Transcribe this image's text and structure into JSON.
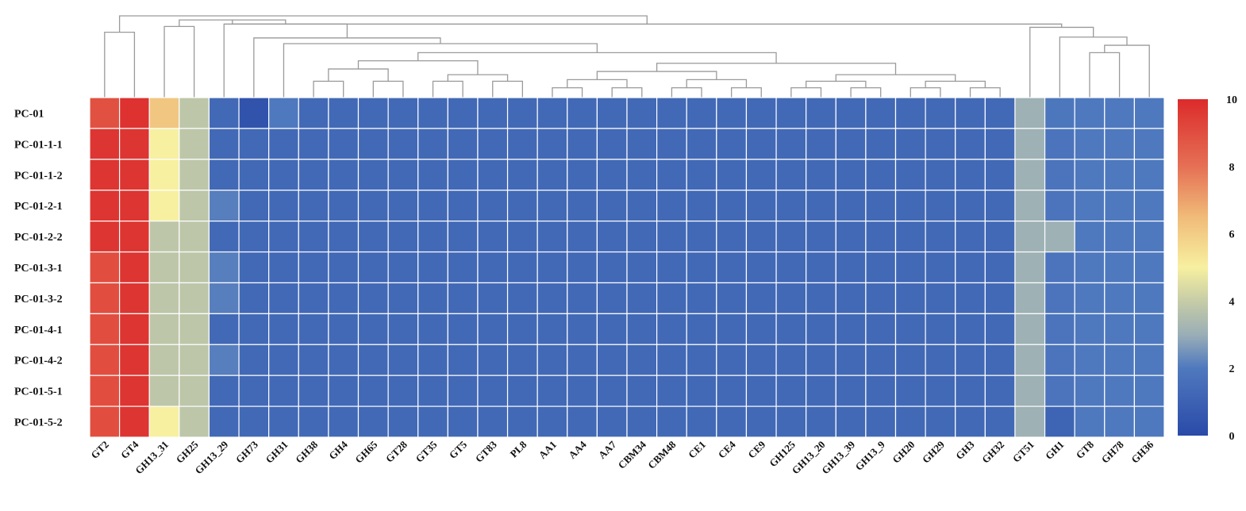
{
  "chart_data": {
    "type": "heatmap",
    "title": "",
    "xlabel": "",
    "ylabel": "",
    "rows": [
      "PC-01",
      "PC-01-1-1",
      "PC-01-1-2",
      "PC-01-2-1",
      "PC-01-2-2",
      "PC-01-3-1",
      "PC-01-3-2",
      "PC-01-4-1",
      "PC-01-4-2",
      "PC-01-5-1",
      "PC-01-5-2"
    ],
    "columns": [
      "GT2",
      "GT4",
      "GH13_31",
      "GH25",
      "GH13_29",
      "GH73",
      "GH31",
      "GH38",
      "GH4",
      "GH65",
      "GT28",
      "GT35",
      "GT5",
      "GT83",
      "PL8",
      "AA1",
      "AA4",
      "AA7",
      "CBM34",
      "CBM48",
      "CE1",
      "CE4",
      "CE9",
      "GH125",
      "GH13_20",
      "GH13_39",
      "GH13_9",
      "GH20",
      "GH29",
      "GH3",
      "GH32",
      "GT51",
      "GH1",
      "GT8",
      "GH78",
      "GH36"
    ],
    "values": [
      [
        8.9,
        9.8,
        6.2,
        3.8,
        1.3,
        0.4,
        2.0,
        1.3,
        1.3,
        1.3,
        1.3,
        1.3,
        1.3,
        1.3,
        1.3,
        1.3,
        1.3,
        1.3,
        1.3,
        1.3,
        1.3,
        1.3,
        1.3,
        1.3,
        1.3,
        1.3,
        1.3,
        1.3,
        1.3,
        1.3,
        1.3,
        3.1,
        1.9,
        2.0,
        2.0,
        2.0
      ],
      [
        9.7,
        9.7,
        5.0,
        3.8,
        1.3,
        1.3,
        1.3,
        1.3,
        1.3,
        1.3,
        1.3,
        1.3,
        1.3,
        1.3,
        1.3,
        1.3,
        1.3,
        1.3,
        1.3,
        1.3,
        1.3,
        1.3,
        1.3,
        1.3,
        1.3,
        1.3,
        1.3,
        1.3,
        1.3,
        1.3,
        1.3,
        3.1,
        1.8,
        2.0,
        2.0,
        2.0
      ],
      [
        9.7,
        9.7,
        5.0,
        3.8,
        1.3,
        1.3,
        1.3,
        1.3,
        1.3,
        1.3,
        1.3,
        1.3,
        1.3,
        1.3,
        1.3,
        1.3,
        1.3,
        1.3,
        1.3,
        1.3,
        1.3,
        1.3,
        1.3,
        1.3,
        1.3,
        1.3,
        1.3,
        1.3,
        1.3,
        1.3,
        1.3,
        3.1,
        1.8,
        2.0,
        2.0,
        2.0
      ],
      [
        9.7,
        9.7,
        5.0,
        3.8,
        2.1,
        1.3,
        1.3,
        1.3,
        1.3,
        1.3,
        1.3,
        1.3,
        1.3,
        1.3,
        1.3,
        1.3,
        1.3,
        1.3,
        1.3,
        1.3,
        1.3,
        1.3,
        1.3,
        1.3,
        1.3,
        1.3,
        1.3,
        1.3,
        1.3,
        1.3,
        1.3,
        3.1,
        1.8,
        2.0,
        2.0,
        2.0
      ],
      [
        9.7,
        9.7,
        3.8,
        3.8,
        1.3,
        1.3,
        1.3,
        1.3,
        1.3,
        1.3,
        1.3,
        1.3,
        1.3,
        1.3,
        1.3,
        1.3,
        1.3,
        1.3,
        1.3,
        1.3,
        1.3,
        1.3,
        1.3,
        1.3,
        1.3,
        1.3,
        1.3,
        1.3,
        1.3,
        1.3,
        1.3,
        3.1,
        3.1,
        2.0,
        2.0,
        2.0
      ],
      [
        9.0,
        9.7,
        3.8,
        3.8,
        2.1,
        1.3,
        1.3,
        1.3,
        1.3,
        1.3,
        1.3,
        1.3,
        1.3,
        1.3,
        1.3,
        1.3,
        1.3,
        1.3,
        1.3,
        1.3,
        1.3,
        1.3,
        1.3,
        1.3,
        1.3,
        1.3,
        1.3,
        1.3,
        1.3,
        1.3,
        1.3,
        3.1,
        1.8,
        2.0,
        2.0,
        2.0
      ],
      [
        9.0,
        9.7,
        3.8,
        3.8,
        2.1,
        1.3,
        1.3,
        1.3,
        1.3,
        1.3,
        1.3,
        1.3,
        1.3,
        1.3,
        1.3,
        1.3,
        1.3,
        1.3,
        1.3,
        1.3,
        1.3,
        1.3,
        1.3,
        1.3,
        1.3,
        1.3,
        1.3,
        1.3,
        1.3,
        1.3,
        1.3,
        3.1,
        1.8,
        2.0,
        2.0,
        2.0
      ],
      [
        9.0,
        9.7,
        3.8,
        3.8,
        1.3,
        1.3,
        1.3,
        1.3,
        1.3,
        1.3,
        1.3,
        1.3,
        1.3,
        1.3,
        1.3,
        1.3,
        1.3,
        1.3,
        1.3,
        1.3,
        1.3,
        1.3,
        1.3,
        1.3,
        1.3,
        1.3,
        1.3,
        1.3,
        1.3,
        1.3,
        1.3,
        3.1,
        1.8,
        2.0,
        2.0,
        2.0
      ],
      [
        9.0,
        9.7,
        3.8,
        3.8,
        2.1,
        1.3,
        1.3,
        1.3,
        1.3,
        1.3,
        1.3,
        1.3,
        1.3,
        1.3,
        1.3,
        1.3,
        1.3,
        1.3,
        1.3,
        1.3,
        1.3,
        1.3,
        1.3,
        1.3,
        1.3,
        1.3,
        1.3,
        1.3,
        1.3,
        1.3,
        1.3,
        3.1,
        1.8,
        2.0,
        2.0,
        2.0
      ],
      [
        9.0,
        9.7,
        3.8,
        3.8,
        1.3,
        1.3,
        1.3,
        1.3,
        1.3,
        1.3,
        1.3,
        1.3,
        1.3,
        1.3,
        1.3,
        1.3,
        1.3,
        1.3,
        1.3,
        1.3,
        1.3,
        1.3,
        1.3,
        1.3,
        1.3,
        1.3,
        1.3,
        1.3,
        1.3,
        1.3,
        1.3,
        3.1,
        1.8,
        2.0,
        2.0,
        2.0
      ],
      [
        9.0,
        9.7,
        5.0,
        3.8,
        1.3,
        1.3,
        1.3,
        1.3,
        1.3,
        1.3,
        1.3,
        1.3,
        1.3,
        1.3,
        1.3,
        1.3,
        1.3,
        1.3,
        1.3,
        1.3,
        1.3,
        1.3,
        1.3,
        1.3,
        1.3,
        1.3,
        1.3,
        1.3,
        1.3,
        1.3,
        1.3,
        3.1,
        1.1,
        2.0,
        2.0,
        2.0
      ]
    ],
    "color_scale": {
      "range": [
        0,
        10
      ],
      "ticks": [
        0,
        2,
        4,
        6,
        8,
        10
      ],
      "stops": [
        {
          "value": 0,
          "color": "#2a4aa8"
        },
        {
          "value": 2,
          "color": "#4f79be"
        },
        {
          "value": 3,
          "color": "#9aaeb6"
        },
        {
          "value": 4,
          "color": "#c6cca6"
        },
        {
          "value": 5,
          "color": "#f7f0a0"
        },
        {
          "value": 6.5,
          "color": "#f0bb78"
        },
        {
          "value": 8,
          "color": "#e57055"
        },
        {
          "value": 10,
          "color": "#dc2b2b"
        }
      ]
    },
    "column_dendrogram": [
      {
        "a": "GT2",
        "b": "GT4",
        "h": 0.8
      },
      {
        "a": "GH13_31",
        "b": "GH25",
        "h": 0.87
      },
      {
        "a": "GH38",
        "b": "GH4",
        "h": 0.2
      },
      {
        "a": "GH65",
        "b": "GT28",
        "h": 0.2
      },
      {
        "a": "n3",
        "b": "n4",
        "h": 0.35
      },
      {
        "a": "GT35",
        "b": "GT5",
        "h": 0.2
      },
      {
        "a": "GT83",
        "b": "PL8",
        "h": 0.2
      },
      {
        "a": "n6",
        "b": "n7",
        "h": 0.28
      },
      {
        "a": "n5",
        "b": "n8",
        "h": 0.45
      },
      {
        "a": "AA1",
        "b": "AA4",
        "h": 0.12
      },
      {
        "a": "AA7",
        "b": "CBM34",
        "h": 0.12
      },
      {
        "a": "n10",
        "b": "n11",
        "h": 0.22
      },
      {
        "a": "CBM48",
        "b": "CE1",
        "h": 0.12
      },
      {
        "a": "CE4",
        "b": "CE9",
        "h": 0.12
      },
      {
        "a": "n13",
        "b": "n14",
        "h": 0.22
      },
      {
        "a": "n12",
        "b": "n15",
        "h": 0.32
      },
      {
        "a": "GH125",
        "b": "GH13_20",
        "h": 0.12
      },
      {
        "a": "GH13_39",
        "b": "GH13_9",
        "h": 0.12
      },
      {
        "a": "n17",
        "b": "n18",
        "h": 0.2
      },
      {
        "a": "GH20",
        "b": "GH29",
        "h": 0.12
      },
      {
        "a": "GH3",
        "b": "GH32",
        "h": 0.12
      },
      {
        "a": "n20",
        "b": "n21",
        "h": 0.2
      },
      {
        "a": "n19",
        "b": "n22",
        "h": 0.28
      },
      {
        "a": "n16",
        "b": "n23",
        "h": 0.42
      },
      {
        "a": "n9",
        "b": "n24",
        "h": 0.55
      },
      {
        "a": "GH31",
        "b": "n25",
        "h": 0.66
      },
      {
        "a": "GH73",
        "b": "n26",
        "h": 0.73
      },
      {
        "a": "GH13_29",
        "b": "n27",
        "h": 0.9
      },
      {
        "a": "n2",
        "b": "n28",
        "h": 0.95
      },
      {
        "a": "GT8",
        "b": "GH78",
        "h": 0.55
      },
      {
        "a": "n30",
        "b": "GH36",
        "h": 0.64
      },
      {
        "a": "GH1",
        "b": "n31",
        "h": 0.74
      },
      {
        "a": "GT51",
        "b": "n32",
        "h": 0.86
      },
      {
        "a": "n29",
        "b": "n33",
        "h": 0.9
      },
      {
        "a": "n1",
        "b": "n34",
        "h": 1.0
      }
    ]
  }
}
